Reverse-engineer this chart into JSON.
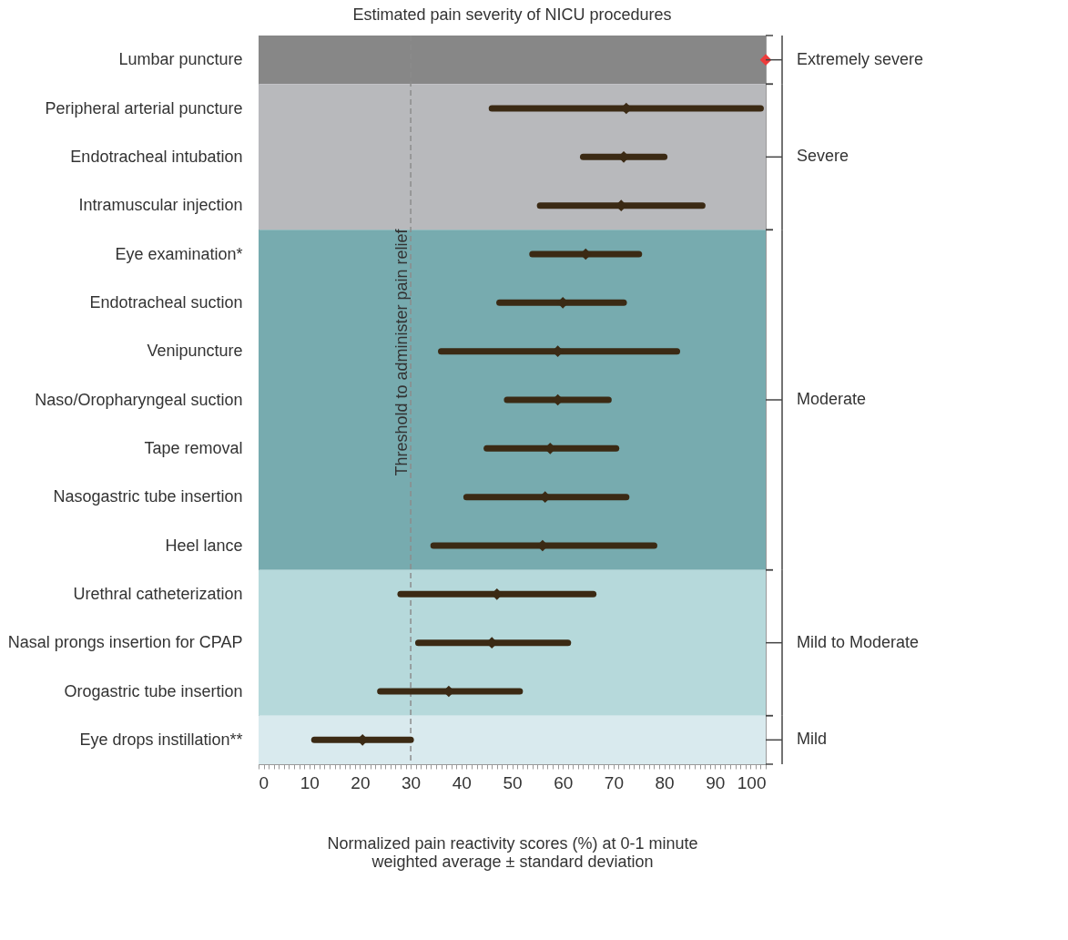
{
  "chart_data": {
    "type": "scatter",
    "title": "Estimated pain severity of NICU procedures",
    "xlabel": "Normalized pain reactivity scores (%) at 0-1 minute\nweighted average ± standard deviation",
    "categories": [
      "Lumbar puncture",
      "Peripheral arterial puncture",
      "Endotracheal intubation",
      "Intramuscular injection",
      "Eye examination*",
      "Endotracheal suction",
      "Venipuncture",
      "Naso/Oropharyngeal suction",
      "Tape removal",
      "Nasogastric tube insertion",
      "Heel lance",
      "Urethral catheterization",
      "Nasal prongs insertion for CPAP",
      "Orogastric tube insertion",
      "Eye drops instillation**"
    ],
    "orientation": "horizontal",
    "values": [
      100,
      72.5,
      72,
      71.5,
      64.5,
      60,
      59,
      59,
      57.5,
      56.5,
      56,
      47,
      46,
      37.5,
      20.5
    ],
    "errors": [
      null,
      [
        46,
        99
      ],
      [
        64,
        80
      ],
      [
        55.5,
        87.5
      ],
      [
        54,
        75
      ],
      [
        47.5,
        72
      ],
      [
        36,
        82.5
      ],
      [
        49,
        69
      ],
      [
        45,
        70.5
      ],
      [
        41,
        72.5
      ],
      [
        34.5,
        78
      ],
      [
        28,
        66
      ],
      [
        31.5,
        61
      ],
      [
        24,
        51.5
      ],
      [
        11,
        30
      ]
    ],
    "colors": [
      "#ee3b3b",
      "#3b2a14",
      "#3b2a14",
      "#3b2a14",
      "#3b2a14",
      "#3b2a14",
      "#3b2a14",
      "#3b2a14",
      "#3b2a14",
      "#3b2a14",
      "#3b2a14",
      "#3b2a14",
      "#3b2a14",
      "#3b2a14",
      "#3b2a14"
    ],
    "marker": "diamond",
    "grid": false,
    "xlim": [
      0,
      100
    ],
    "xticks": [
      0,
      {
        "value": 1,
        "label": null
      },
      {
        "value": 2,
        "label": null
      },
      {
        "value": 3,
        "label": null
      },
      {
        "value": 4,
        "label": null
      },
      {
        "value": 5,
        "label": null
      },
      {
        "value": 6,
        "label": null
      },
      {
        "value": 7,
        "label": null
      },
      {
        "value": 8,
        "label": null
      },
      {
        "value": 9,
        "label": null
      },
      10,
      {
        "value": 11,
        "label": null
      },
      {
        "value": 12,
        "label": null
      },
      {
        "value": 13,
        "label": null
      },
      {
        "value": 14,
        "label": null
      },
      {
        "value": 15,
        "label": null
      },
      {
        "value": 16,
        "label": null
      },
      {
        "value": 17,
        "label": null
      },
      {
        "value": 18,
        "label": null
      },
      {
        "value": 19,
        "label": null
      },
      20,
      {
        "value": 21,
        "label": null
      },
      {
        "value": 22,
        "label": null
      },
      {
        "value": 23,
        "label": null
      },
      {
        "value": 24,
        "label": null
      },
      {
        "value": 25,
        "label": null
      },
      {
        "value": 26,
        "label": null
      },
      {
        "value": 27,
        "label": null
      },
      {
        "value": 28,
        "label": null
      },
      {
        "value": 29,
        "label": null
      },
      30,
      {
        "value": 31,
        "label": null
      },
      {
        "value": 32,
        "label": null
      },
      {
        "value": 33,
        "label": null
      },
      {
        "value": 34,
        "label": null
      },
      {
        "value": 35,
        "label": null
      },
      {
        "value": 36,
        "label": null
      },
      {
        "value": 37,
        "label": null
      },
      {
        "value": 38,
        "label": null
      },
      {
        "value": 39,
        "label": null
      },
      40,
      {
        "value": 41,
        "label": null
      },
      {
        "value": 42,
        "label": null
      },
      {
        "value": 43,
        "label": null
      },
      {
        "value": 44,
        "label": null
      },
      {
        "value": 45,
        "label": null
      },
      {
        "value": 46,
        "label": null
      },
      {
        "value": 47,
        "label": null
      },
      {
        "value": 48,
        "label": null
      },
      {
        "value": 49,
        "label": null
      },
      50,
      {
        "value": 51,
        "label": null
      },
      {
        "value": 52,
        "label": null
      },
      {
        "value": 53,
        "label": null
      },
      {
        "value": 54,
        "label": null
      },
      {
        "value": 55,
        "label": null
      },
      {
        "value": 56,
        "label": null
      },
      {
        "value": 57,
        "label": null
      },
      {
        "value": 58,
        "label": null
      },
      {
        "value": 59,
        "label": null
      },
      60,
      {
        "value": 61,
        "label": null
      },
      {
        "value": 62,
        "label": null
      },
      {
        "value": 63,
        "label": null
      },
      {
        "value": 64,
        "label": null
      },
      {
        "value": 65,
        "label": null
      },
      {
        "value": 66,
        "label": null
      },
      {
        "value": 67,
        "label": null
      },
      {
        "value": 68,
        "label": null
      },
      {
        "value": 69,
        "label": null
      },
      70,
      {
        "value": 71,
        "label": null
      },
      {
        "value": 72,
        "label": null
      },
      {
        "value": 73,
        "label": null
      },
      {
        "value": 74,
        "label": null
      },
      {
        "value": 75,
        "label": null
      },
      {
        "value": 76,
        "label": null
      },
      {
        "value": 77,
        "label": null
      },
      {
        "value": 78,
        "label": null
      },
      {
        "value": 79,
        "label": null
      },
      80,
      {
        "value": 81,
        "label": null
      },
      {
        "value": 82,
        "label": null
      },
      {
        "value": 83,
        "label": null
      },
      {
        "value": 84,
        "label": null
      },
      {
        "value": 85,
        "label": null
      },
      {
        "value": 86,
        "label": null
      },
      {
        "value": 87,
        "label": null
      },
      {
        "value": 88,
        "label": null
      },
      {
        "value": 89,
        "label": null
      },
      90,
      {
        "value": 91,
        "label": null
      },
      {
        "value": 92,
        "label": null
      },
      {
        "value": 93,
        "label": null
      },
      {
        "value": 94,
        "label": null
      },
      {
        "value": 95,
        "label": null
      },
      {
        "value": 96,
        "label": null
      },
      {
        "value": 97,
        "label": null
      },
      {
        "value": 98,
        "label": null
      },
      {
        "value": 99,
        "label": null
      },
      100
    ],
    "ref_lines": [
      {
        "axis": "x",
        "value": 30,
        "label": "Threshold to administer pain relief",
        "color": "#8c8c8c",
        "line_style": "dashed"
      }
    ],
    "bands": [
      {
        "axis": "y",
        "from": "Lumbar puncture",
        "to": "Lumbar puncture",
        "label": "Extremely severe",
        "color": "#878787"
      },
      {
        "axis": "y",
        "from": "Peripheral arterial puncture",
        "to": "Intramuscular injection",
        "label": "Severe",
        "color": "#b8b9bc"
      },
      {
        "axis": "y",
        "from": "Eye examination*",
        "to": "Heel lance",
        "label": "Moderate",
        "color": "#77abaf"
      },
      {
        "axis": "y",
        "from": "Urethral catheterization",
        "to": "Orogastric tube insertion",
        "label": "Mild to Moderate",
        "color": "#b6d9db"
      },
      {
        "axis": "y",
        "from": "Eye drops instillation**",
        "to": "Eye drops instillation**",
        "label": "Mild",
        "color": "#d9eaee"
      }
    ]
  }
}
